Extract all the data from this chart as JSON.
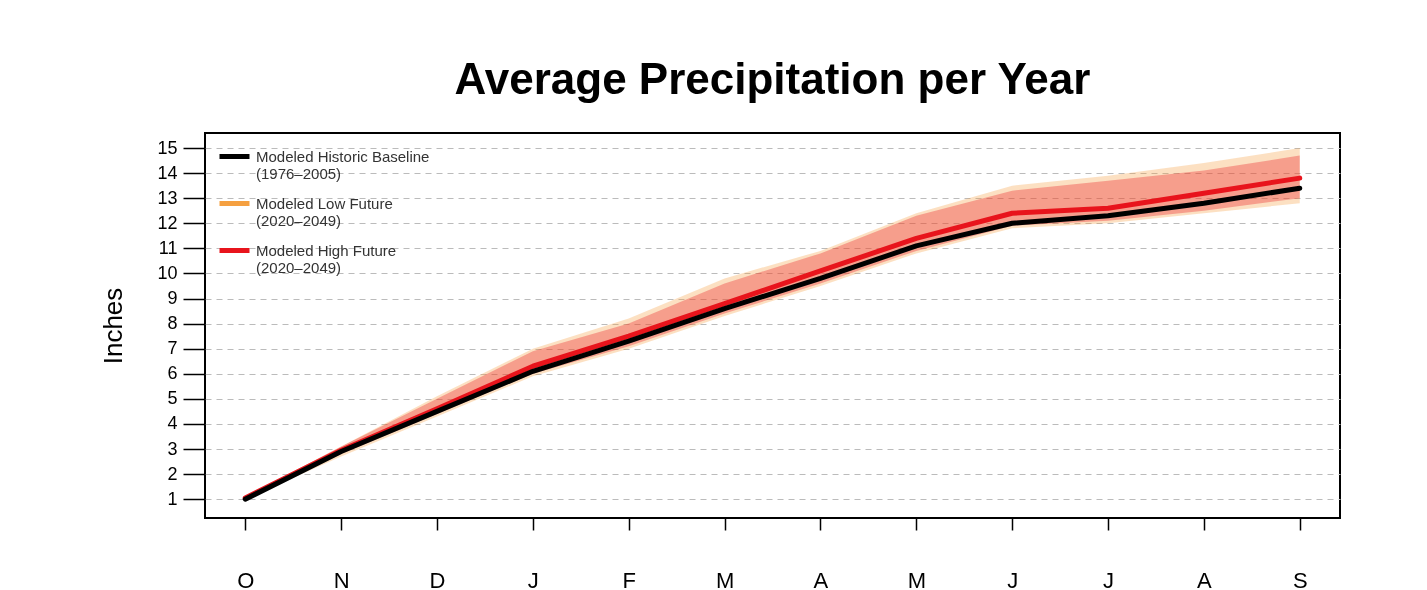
{
  "chart_data": {
    "type": "line",
    "title": "Average Precipitation per Year",
    "ylabel": "Inches",
    "categories": [
      "O",
      "N",
      "D",
      "J",
      "F",
      "M",
      "A",
      "M",
      "J",
      "J",
      "A",
      "S"
    ],
    "ylim": [
      0.25,
      15.6
    ],
    "yticks": [
      1,
      2,
      3,
      4,
      5,
      6,
      7,
      8,
      9,
      10,
      11,
      12,
      13,
      14,
      15
    ],
    "grid": "y",
    "legend": "top left",
    "series": [
      {
        "name": "Modeled Low Future\n(2020–2049)",
        "color": "#f5a040",
        "values": [
          null,
          null,
          null,
          null,
          null,
          null,
          null,
          null,
          null,
          null,
          null,
          null
        ],
        "lower": [
          1.0,
          2.7,
          4.3,
          5.9,
          7.0,
          8.3,
          9.5,
          10.8,
          11.8,
          12.0,
          12.4,
          12.8
        ],
        "upper": [
          1.1,
          3.1,
          5.1,
          7.0,
          8.2,
          9.8,
          10.9,
          12.4,
          13.5,
          13.9,
          14.4,
          15.0
        ]
      },
      {
        "name": "Modeled High Future\n(2020–2049)",
        "color": "#e8141c",
        "values": [
          1.05,
          2.95,
          4.6,
          6.3,
          7.5,
          8.8,
          10.1,
          11.4,
          12.4,
          12.6,
          13.2,
          13.8
        ],
        "lower": [
          1.0,
          2.8,
          4.4,
          6.0,
          7.1,
          8.4,
          9.6,
          10.9,
          11.9,
          12.1,
          12.5,
          13.0
        ],
        "upper": [
          1.1,
          3.1,
          5.0,
          6.9,
          8.0,
          9.6,
          10.8,
          12.3,
          13.3,
          13.7,
          14.1,
          14.7
        ]
      },
      {
        "name": "Modeled Historic Baseline\n(1976–2005)",
        "color": "#000000",
        "values": [
          1.0,
          2.9,
          4.5,
          6.1,
          7.3,
          8.6,
          9.8,
          11.1,
          12.0,
          12.3,
          12.8,
          13.4
        ]
      }
    ]
  }
}
